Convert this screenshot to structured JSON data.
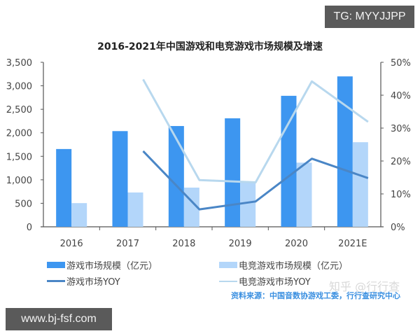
{
  "badges": {
    "top_right": "TG: MYYJJPP",
    "bottom_left": "www.bj-fsf.com"
  },
  "watermark": "知乎 @行行查",
  "source": "资料来源：中国音数协游戏工委，行行查研究中心",
  "colors": {
    "game_bar": "#3d96f0",
    "esports_bar": "#b3d6fa",
    "game_yoy": "#4a86c6",
    "esports_yoy": "#b8d8ee"
  },
  "chart_data": {
    "type": "bar",
    "title": "2016-2021年中国游戏和电竞游戏市场规模及增速",
    "categories": [
      "2016",
      "2017",
      "2018",
      "2019",
      "2020",
      "2021E"
    ],
    "series": [
      {
        "name": "游戏市场规模（亿元）",
        "type": "bar",
        "axis": "left",
        "values": [
          1655,
          2036,
          2144,
          2308,
          2787,
          3200
        ]
      },
      {
        "name": "电竞游戏市场规模（亿元）",
        "type": "bar",
        "axis": "left",
        "values": [
          504,
          730,
          834,
          947,
          1365,
          1800
        ]
      },
      {
        "name": "游戏市场YOY",
        "type": "line",
        "axis": "right",
        "values": [
          null,
          23.0,
          5.3,
          7.7,
          20.7,
          14.8
        ]
      },
      {
        "name": "电竞游戏市场YOY",
        "type": "line",
        "axis": "right",
        "values": [
          null,
          44.8,
          14.2,
          13.5,
          44.2,
          31.9
        ]
      }
    ],
    "left_axis": {
      "ylim": [
        0,
        3500
      ],
      "ticks": [
        "0",
        "500",
        "1,000",
        "1,500",
        "2,000",
        "2,500",
        "3,000",
        "3,500"
      ]
    },
    "right_axis": {
      "ylim": [
        0,
        50
      ],
      "ticks": [
        "0%",
        "10%",
        "20%",
        "30%",
        "40%",
        "50%"
      ]
    },
    "xlabel": "",
    "ylabel": "",
    "grid": false,
    "legend_position": "bottom"
  }
}
